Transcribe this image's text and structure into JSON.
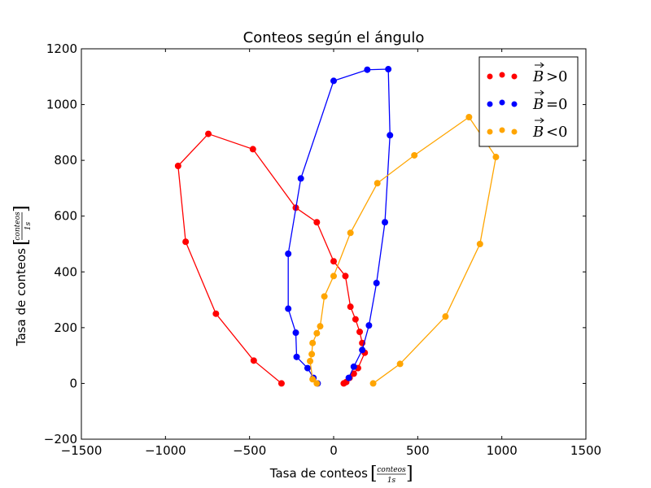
{
  "chart_data": {
    "type": "line",
    "title": "Conteos según el ángulo",
    "xlabel": {
      "text": "Tasa de conteos",
      "frac_num": "conteos",
      "frac_den": "1s"
    },
    "ylabel": {
      "text": "Tasa de conteos",
      "frac_num": "conteos",
      "frac_den": "1s"
    },
    "xlim": [
      -1500,
      1500
    ],
    "ylim": [
      -200,
      1200
    ],
    "xticks": [
      -1500,
      -1000,
      -500,
      0,
      500,
      1000,
      1500
    ],
    "yticks": [
      -200,
      0,
      200,
      400,
      600,
      800,
      1000,
      1200
    ],
    "grid": false,
    "legend_position": "top-right",
    "series": [
      {
        "name": "B>0",
        "legend_vec": "B",
        "legend_op": ">",
        "legend_rhs": "0",
        "color": "#ff0000",
        "x": [
          -310,
          -475,
          -700,
          -880,
          -925,
          -745,
          -480,
          -225,
          -100,
          0,
          70,
          100,
          130,
          155,
          170,
          185,
          145,
          120,
          95,
          75,
          60
        ],
        "y": [
          0,
          82,
          250,
          508,
          780,
          895,
          840,
          630,
          578,
          438,
          385,
          275,
          230,
          185,
          145,
          110,
          55,
          35,
          20,
          5,
          0
        ]
      },
      {
        "name": "B=0",
        "legend_vec": "B",
        "legend_op": "=",
        "legend_rhs": "0",
        "color": "#0000ff",
        "x": [
          -95,
          -120,
          -155,
          -220,
          -225,
          -270,
          -270,
          -195,
          0,
          200,
          325,
          335,
          305,
          255,
          210,
          170,
          120,
          90
        ],
        "y": [
          0,
          20,
          55,
          95,
          182,
          268,
          465,
          735,
          1085,
          1125,
          1127,
          890,
          578,
          360,
          208,
          120,
          60,
          20
        ]
      },
      {
        "name": "B<0",
        "legend_vec": "B",
        "legend_op": "<",
        "legend_rhs": "0",
        "color": "#ffa500",
        "x": [
          -100,
          -125,
          -140,
          -130,
          -125,
          -100,
          -80,
          -55,
          0,
          100,
          260,
          480,
          805,
          965,
          870,
          665,
          395,
          235
        ],
        "y": [
          0,
          15,
          80,
          105,
          145,
          180,
          205,
          312,
          385,
          540,
          718,
          818,
          955,
          812,
          500,
          240,
          70,
          0
        ]
      }
    ]
  }
}
